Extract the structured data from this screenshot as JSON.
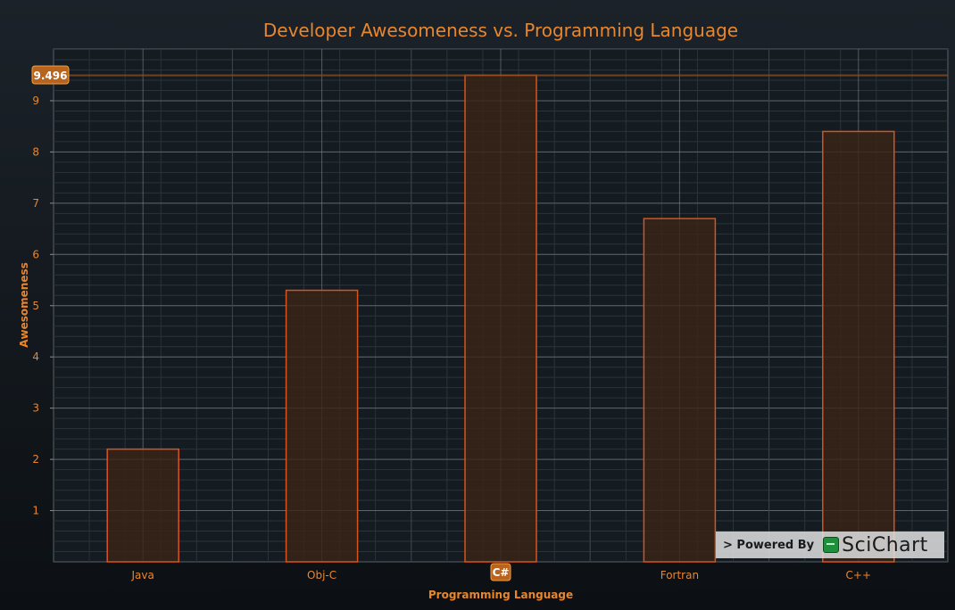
{
  "chart_data": {
    "type": "bar",
    "title": "Developer Awesomeness vs. Programming Language",
    "xlabel": "Programming Language",
    "ylabel": "Awesomeness",
    "categories": [
      "Java",
      "Obj-C",
      "C#",
      "Fortran",
      "C++"
    ],
    "values": [
      2.2,
      5.3,
      9.5,
      6.7,
      8.4
    ],
    "ylim": [
      0,
      9.5
    ],
    "yticks": [
      "1",
      "2",
      "3",
      "4",
      "5",
      "6",
      "7",
      "8",
      "9"
    ],
    "grid": true,
    "cursor": {
      "y_value": 9.496,
      "y_label": "9.496",
      "x_category": "C#"
    },
    "colors": {
      "bar_stroke": "#d9531e",
      "bar_fill": "#3a2415",
      "text": "#e8862e",
      "grid": "#8a8f94"
    }
  },
  "watermark": {
    "powered_by": "> Powered By",
    "brand": "SciChart"
  }
}
